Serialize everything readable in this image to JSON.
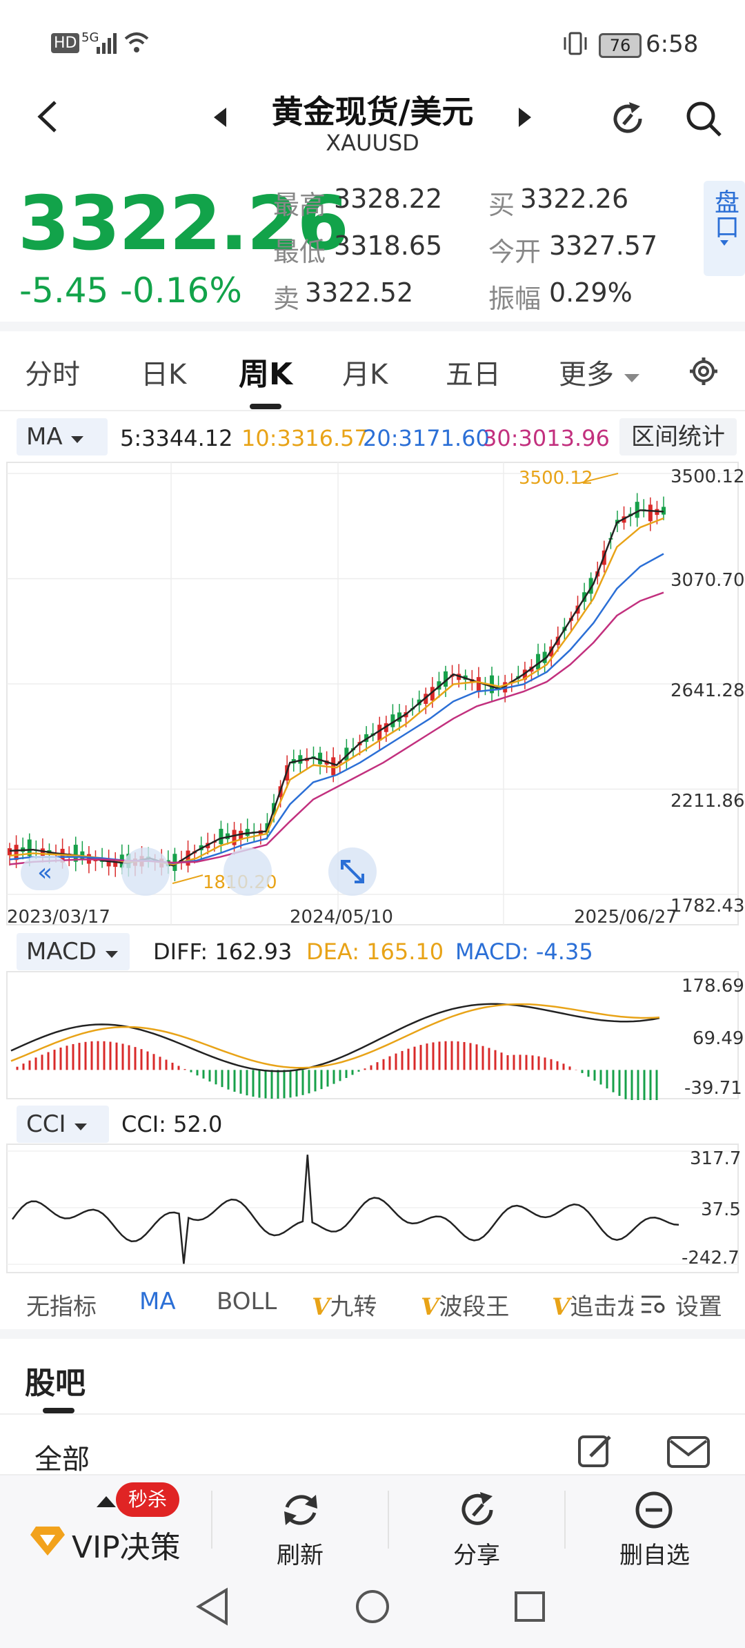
{
  "status_bar": {
    "left_icons": [
      "HD",
      "5G",
      "signal-icon",
      "wifi-icon"
    ],
    "battery": "76",
    "time": "6:58"
  },
  "header": {
    "title": "黄金现货/美元",
    "subtitle": "XAUUSD"
  },
  "quote": {
    "price": "3322.26",
    "change": "-5.45",
    "change_pct": "-0.16%",
    "high_label": "最高",
    "high": "3328.22",
    "low_label": "最低",
    "low": "3318.65",
    "sell_label": "卖",
    "sell": "3322.52",
    "buy_label": "买",
    "buy": "3322.26",
    "open_label": "今开",
    "open": "3327.57",
    "amp_label": "振幅",
    "amp": "0.29%",
    "pankou": "盘口",
    "color_down": "#12a34a",
    "color_up": "#e02424"
  },
  "tabs": [
    "分时",
    "日K",
    "周K",
    "月K",
    "五日",
    "更多"
  ],
  "active_tab": "周K",
  "ma_bar": {
    "label": "MA",
    "ma5": "5:3344.12",
    "ma10": "10:3316.57",
    "ma20": "20:3171.60",
    "ma30": "30:3013.96",
    "range_stats": "区间统计",
    "colors": {
      "ma5": "#222222",
      "ma10": "#e8a317",
      "ma20": "#2b6fd6",
      "ma30": "#c2307e"
    }
  },
  "chart_data": [
    {
      "type": "candlestick",
      "title": "周K",
      "y_ticks": [
        "3500.12",
        "3070.70",
        "2641.28",
        "2211.86",
        "1782.43"
      ],
      "ylim": [
        1782.43,
        3500.12
      ],
      "x_ticks": [
        "2023/03/17",
        "2024/05/10",
        "2025/06/27"
      ],
      "annotations": {
        "max": "3500.12",
        "min": "1810.20"
      },
      "series": [
        {
          "name": "5",
          "values": [
            1960,
            1965,
            1950,
            1940,
            1920,
            1910,
            1930,
            1900,
            1960,
            2010,
            2030,
            2040,
            2320,
            2340,
            2310,
            2400,
            2460,
            2520,
            2600,
            2680,
            2650,
            2620,
            2680,
            2750,
            2900,
            3050,
            3300,
            3350,
            3344
          ]
        },
        {
          "name": "10",
          "values": [
            1940,
            1950,
            1945,
            1940,
            1930,
            1915,
            1920,
            1905,
            1930,
            1980,
            2010,
            2030,
            2250,
            2310,
            2300,
            2360,
            2420,
            2480,
            2560,
            2640,
            2650,
            2630,
            2660,
            2720,
            2850,
            2990,
            3200,
            3280,
            3317
          ]
        },
        {
          "name": "20",
          "values": [
            1925,
            1935,
            1935,
            1935,
            1930,
            1920,
            1920,
            1910,
            1920,
            1950,
            1985,
            2010,
            2150,
            2240,
            2270,
            2320,
            2380,
            2440,
            2500,
            2570,
            2610,
            2620,
            2640,
            2690,
            2780,
            2890,
            3030,
            3120,
            3172
          ]
        },
        {
          "name": "30",
          "values": [
            1905,
            1915,
            1920,
            1925,
            1925,
            1920,
            1918,
            1912,
            1915,
            1935,
            1960,
            1985,
            2080,
            2170,
            2220,
            2270,
            2320,
            2380,
            2440,
            2500,
            2550,
            2580,
            2610,
            2650,
            2720,
            2810,
            2920,
            2980,
            3014
          ]
        }
      ]
    },
    {
      "type": "line",
      "title": "MACD",
      "series_values": {
        "DIFF": "162.93",
        "DEA": "165.10",
        "MACD": "-4.35"
      },
      "y_ticks": [
        "178.69",
        "69.49",
        "-39.71"
      ],
      "ylim": [
        -39.71,
        178.69
      ]
    },
    {
      "type": "line",
      "title": "CCI",
      "series_values": {
        "CCI": "52.0"
      },
      "y_ticks": [
        "317.7",
        "37.5",
        "-242.7"
      ],
      "ylim": [
        -242.7,
        317.7
      ]
    }
  ],
  "macd_bar": {
    "label": "MACD",
    "diff": "DIFF: 162.93",
    "dea": "DEA: 165.10",
    "macd": "MACD: -4.35"
  },
  "cci_bar": {
    "label": "CCI",
    "cci": "CCI: 52.0"
  },
  "indicator_tabs": [
    "无指标",
    "MA",
    "BOLL",
    "九转",
    "波段王",
    "追击龙",
    "设置"
  ],
  "forum": {
    "title": "股吧",
    "filter": "全部"
  },
  "bottom_bar": {
    "vip": "VIP决策",
    "flash": "秒杀",
    "refresh": "刷新",
    "share": "分享",
    "remove": "删自选"
  }
}
